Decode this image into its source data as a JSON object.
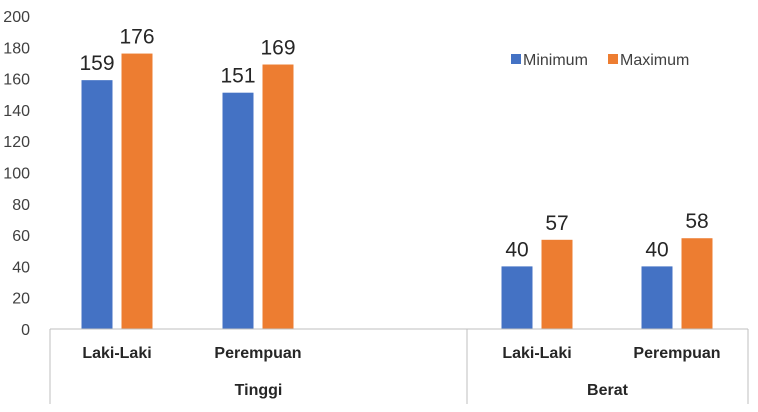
{
  "chart_data": {
    "type": "bar",
    "groups": [
      {
        "name": "Tinggi",
        "categories": [
          "Laki-Laki",
          "Perempuan"
        ]
      },
      {
        "name": "Berat",
        "categories": [
          "Laki-Laki",
          "Perempuan"
        ]
      }
    ],
    "series": [
      {
        "name": "Minimum",
        "color": "#4472C4",
        "values": [
          159,
          151,
          40,
          40
        ]
      },
      {
        "name": "Maximum",
        "color": "#ED7D31",
        "values": [
          176,
          169,
          57,
          58
        ]
      }
    ],
    "yticks": [
      "0",
      "20",
      "40",
      "60",
      "80",
      "100",
      "120",
      "140",
      "160",
      "180",
      "200"
    ],
    "ylim": [
      0,
      200
    ],
    "grid": false,
    "legend_position": "top-right",
    "title": "",
    "xlabel": "",
    "ylabel": ""
  }
}
